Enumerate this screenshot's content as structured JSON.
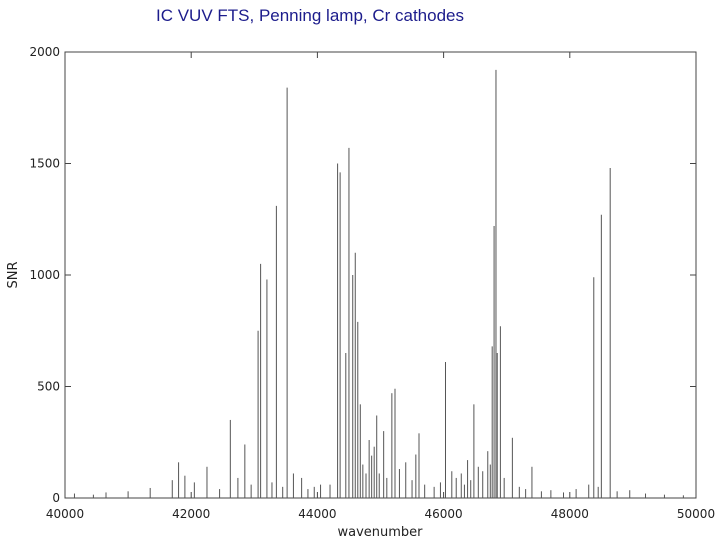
{
  "title": "IC VUV FTS, Penning lamp, Cr cathodes",
  "chart_data": {
    "type": "line",
    "title": "IC VUV FTS, Penning lamp, Cr cathodes",
    "xlabel": "wavenumber",
    "ylabel": "SNR",
    "xlim": [
      40000,
      50000
    ],
    "ylim": [
      0,
      2000
    ],
    "x_ticks": [
      40000,
      42000,
      44000,
      46000,
      48000,
      50000
    ],
    "y_ticks": [
      0,
      500,
      1000,
      1500,
      2000
    ],
    "grid": false,
    "color": "#555555",
    "peaks": [
      {
        "x": 41800,
        "y": 160
      },
      {
        "x": 42250,
        "y": 140
      },
      {
        "x": 42620,
        "y": 350
      },
      {
        "x": 42740,
        "y": 90
      },
      {
        "x": 42850,
        "y": 240
      },
      {
        "x": 43060,
        "y": 750
      },
      {
        "x": 43100,
        "y": 1050
      },
      {
        "x": 43200,
        "y": 980
      },
      {
        "x": 43350,
        "y": 1310
      },
      {
        "x": 43520,
        "y": 1840
      },
      {
        "x": 43620,
        "y": 110
      },
      {
        "x": 43750,
        "y": 90
      },
      {
        "x": 44050,
        "y": 60
      },
      {
        "x": 44320,
        "y": 1500
      },
      {
        "x": 44360,
        "y": 1460
      },
      {
        "x": 44450,
        "y": 650
      },
      {
        "x": 44500,
        "y": 1570
      },
      {
        "x": 44560,
        "y": 1000
      },
      {
        "x": 44600,
        "y": 1100
      },
      {
        "x": 44640,
        "y": 790
      },
      {
        "x": 44680,
        "y": 420
      },
      {
        "x": 44820,
        "y": 260
      },
      {
        "x": 44900,
        "y": 230
      },
      {
        "x": 44940,
        "y": 370
      },
      {
        "x": 45050,
        "y": 300
      },
      {
        "x": 45180,
        "y": 470
      },
      {
        "x": 45230,
        "y": 490
      },
      {
        "x": 45400,
        "y": 160
      },
      {
        "x": 45560,
        "y": 195
      },
      {
        "x": 45610,
        "y": 290
      },
      {
        "x": 46030,
        "y": 610
      },
      {
        "x": 46130,
        "y": 120
      },
      {
        "x": 46280,
        "y": 110
      },
      {
        "x": 46380,
        "y": 170
      },
      {
        "x": 46480,
        "y": 420
      },
      {
        "x": 46700,
        "y": 210
      },
      {
        "x": 46770,
        "y": 680
      },
      {
        "x": 46800,
        "y": 1220
      },
      {
        "x": 46830,
        "y": 1920
      },
      {
        "x": 46850,
        "y": 650
      },
      {
        "x": 46900,
        "y": 770
      },
      {
        "x": 47090,
        "y": 270
      },
      {
        "x": 47400,
        "y": 140
      },
      {
        "x": 48380,
        "y": 990
      },
      {
        "x": 48500,
        "y": 1270
      },
      {
        "x": 48640,
        "y": 1480
      }
    ],
    "minor_peaks": [
      {
        "x": 40150,
        "y": 20
      },
      {
        "x": 40450,
        "y": 15
      },
      {
        "x": 40650,
        "y": 25
      },
      {
        "x": 41000,
        "y": 30
      },
      {
        "x": 41350,
        "y": 45
      },
      {
        "x": 41700,
        "y": 80
      },
      {
        "x": 41900,
        "y": 100
      },
      {
        "x": 42050,
        "y": 70
      },
      {
        "x": 42450,
        "y": 40
      },
      {
        "x": 42950,
        "y": 60
      },
      {
        "x": 43280,
        "y": 70
      },
      {
        "x": 43450,
        "y": 50
      },
      {
        "x": 43850,
        "y": 40
      },
      {
        "x": 43950,
        "y": 50
      },
      {
        "x": 44200,
        "y": 60
      },
      {
        "x": 44720,
        "y": 150
      },
      {
        "x": 44770,
        "y": 110
      },
      {
        "x": 44860,
        "y": 190
      },
      {
        "x": 44980,
        "y": 110
      },
      {
        "x": 45100,
        "y": 90
      },
      {
        "x": 45300,
        "y": 130
      },
      {
        "x": 45500,
        "y": 80
      },
      {
        "x": 45700,
        "y": 60
      },
      {
        "x": 45850,
        "y": 50
      },
      {
        "x": 45950,
        "y": 70
      },
      {
        "x": 46200,
        "y": 90
      },
      {
        "x": 46330,
        "y": 60
      },
      {
        "x": 46430,
        "y": 80
      },
      {
        "x": 46550,
        "y": 140
      },
      {
        "x": 46620,
        "y": 120
      },
      {
        "x": 46740,
        "y": 150
      },
      {
        "x": 46960,
        "y": 90
      },
      {
        "x": 47200,
        "y": 50
      },
      {
        "x": 47300,
        "y": 40
      },
      {
        "x": 47550,
        "y": 30
      },
      {
        "x": 47700,
        "y": 35
      },
      {
        "x": 47900,
        "y": 25
      },
      {
        "x": 48100,
        "y": 40
      },
      {
        "x": 48300,
        "y": 60
      },
      {
        "x": 48450,
        "y": 50
      },
      {
        "x": 48750,
        "y": 30
      },
      {
        "x": 48950,
        "y": 35
      },
      {
        "x": 49200,
        "y": 20
      },
      {
        "x": 49500,
        "y": 15
      },
      {
        "x": 49800,
        "y": 12
      }
    ]
  }
}
